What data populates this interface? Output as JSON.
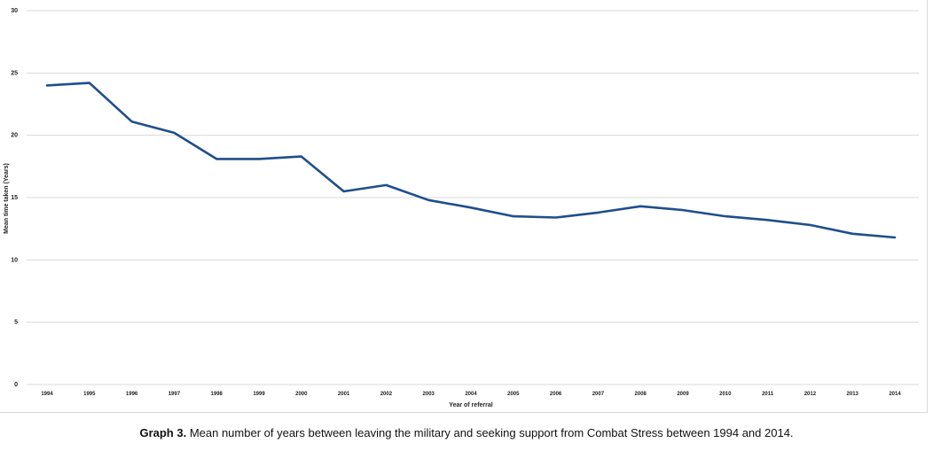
{
  "chart_data": {
    "type": "line",
    "title": "",
    "xlabel": "Year of referral",
    "ylabel": "Mean time taken (Years)",
    "ylim": [
      0,
      30
    ],
    "yticks": [
      0,
      5,
      10,
      15,
      20,
      25,
      30
    ],
    "grid": true,
    "line_color": "#1f4e8c",
    "categories": [
      "1994",
      "1995",
      "1996",
      "1997",
      "1998",
      "1999",
      "2000",
      "2001",
      "2002",
      "2003",
      "2004",
      "2005",
      "2006",
      "2007",
      "2008",
      "2009",
      "2010",
      "2011",
      "2012",
      "2013",
      "2014"
    ],
    "series": [
      {
        "name": "Mean time taken (Years)",
        "values": [
          24.0,
          24.2,
          21.1,
          20.2,
          18.1,
          18.1,
          18.3,
          15.5,
          16.0,
          14.8,
          14.2,
          13.5,
          13.4,
          13.8,
          14.3,
          14.0,
          13.5,
          13.2,
          12.8,
          12.1,
          11.8
        ]
      }
    ]
  },
  "caption": {
    "label": "Graph 3.",
    "text": " Mean number of years between leaving the military and seeking support from Combat Stress between 1994 and 2014."
  }
}
